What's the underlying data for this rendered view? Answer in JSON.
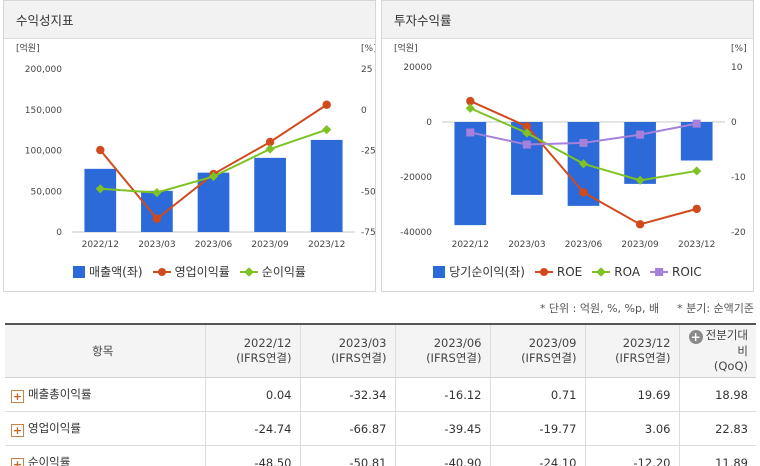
{
  "left_panel": {
    "title": "수익성지표"
  },
  "right_panel": {
    "title": "투자수익률"
  },
  "chart_data": [
    {
      "type": "bar",
      "categories": [
        "2022/12",
        "2023/03",
        "2023/06",
        "2023/09",
        "2023/12"
      ],
      "yunit_left": "[억원]",
      "yunit_right": "[%]",
      "ylim_left": [
        0,
        200000
      ],
      "yticks_left": [
        "200,000",
        "150,000",
        "100,000",
        "50,000",
        "0"
      ],
      "ylim_right": [
        -75,
        25
      ],
      "yticks_right": [
        "25",
        "0",
        "-25",
        "-50",
        "-75"
      ],
      "series": [
        {
          "name": "매출액(좌)",
          "kind": "bar",
          "axis": "left",
          "color": "#2b6ad8",
          "marker": "box",
          "values": [
            77500,
            50500,
            72800,
            91000,
            113000
          ]
        },
        {
          "name": "영업이익률",
          "kind": "line",
          "axis": "right",
          "color": "#d14a1c",
          "marker": "circle",
          "values": [
            -24.74,
            -66.87,
            -39.45,
            -19.77,
            3.06
          ]
        },
        {
          "name": "순이익률",
          "kind": "line",
          "axis": "right",
          "color": "#7ec224",
          "marker": "diamond",
          "values": [
            -48.5,
            -50.81,
            -40.9,
            -24.1,
            -12.2
          ]
        }
      ]
    },
    {
      "type": "bar",
      "categories": [
        "2022/12",
        "2023/03",
        "2023/06",
        "2023/09",
        "2023/12"
      ],
      "yunit_left": "[억원]",
      "yunit_right": "[%]",
      "ylim_left": [
        -40000,
        20000
      ],
      "yticks_left": [
        "20000",
        "0",
        "-20000",
        "-40000"
      ],
      "ylim_right": [
        -20,
        10
      ],
      "yticks_right": [
        "10",
        "0",
        "-10",
        "-20"
      ],
      "series": [
        {
          "name": "당기순이익(좌)",
          "kind": "bar",
          "axis": "left",
          "color": "#2b6ad8",
          "marker": "box",
          "values": [
            -37500,
            -26500,
            -30500,
            -22500,
            -14000
          ]
        },
        {
          "name": "ROE",
          "kind": "line",
          "axis": "right",
          "color": "#d14a1c",
          "marker": "circle",
          "values": [
            3.8,
            -0.8,
            -12.8,
            -18.6,
            -15.8
          ]
        },
        {
          "name": "ROA",
          "kind": "line",
          "axis": "right",
          "color": "#7ec224",
          "marker": "diamond",
          "values": [
            2.5,
            -2.0,
            -7.6,
            -10.6,
            -8.9
          ]
        },
        {
          "name": "ROIC",
          "kind": "line",
          "axis": "right",
          "color": "#a580dc",
          "marker": "square",
          "values": [
            -1.9,
            -4.1,
            -3.8,
            -2.3,
            -0.3
          ]
        }
      ]
    }
  ],
  "notes": {
    "unit": "* 단위 : 억원, %, %p, 배",
    "period": "* 분기: 순액기준"
  },
  "table": {
    "header_item": "항목",
    "periods": [
      {
        "date": "2022/12",
        "basis": "(IFRS연결)"
      },
      {
        "date": "2023/03",
        "basis": "(IFRS연결)"
      },
      {
        "date": "2023/06",
        "basis": "(IFRS연결)"
      },
      {
        "date": "2023/09",
        "basis": "(IFRS연결)"
      },
      {
        "date": "2023/12",
        "basis": "(IFRS연결)"
      }
    ],
    "compare": {
      "label": "전분기대비",
      "sub": "(QoQ)"
    },
    "rows": [
      {
        "label": "매출총이익률",
        "values": [
          "0.04",
          "-32.34",
          "-16.12",
          "0.71",
          "19.69"
        ],
        "qoq": "18.98"
      },
      {
        "label": "영업이익률",
        "values": [
          "-24.74",
          "-66.87",
          "-39.45",
          "-19.77",
          "3.06"
        ],
        "qoq": "22.83"
      },
      {
        "label": "순이익률",
        "values": [
          "-48.50",
          "-50.81",
          "-40.90",
          "-24.10",
          "-12.20"
        ],
        "qoq": "11.89"
      }
    ]
  }
}
